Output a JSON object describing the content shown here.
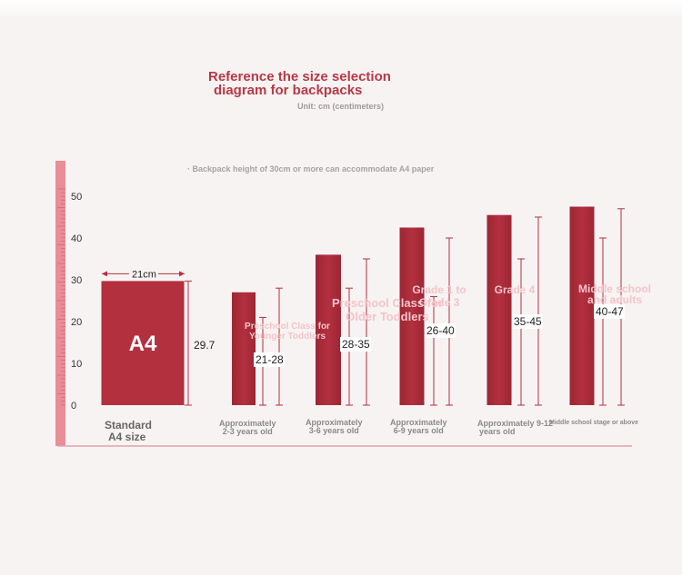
{
  "title_line1": "Reference the size selection",
  "title_line2": "diagram for backpacks",
  "unit_label": "Unit: cm (centimeters)",
  "note": "· Backpack height of 30cm or more can accommodate A4 paper",
  "colors": {
    "bar": "#b3303f",
    "bar_dark": "#9d2634",
    "ruler": "#e98d97",
    "title": "#b83846"
  },
  "chart_data": {
    "type": "bar",
    "title": "Reference the size selection diagram for backpacks",
    "unit": "cm",
    "ylim": [
      0,
      50
    ],
    "yticks": [
      0,
      10,
      20,
      30,
      40,
      50
    ],
    "grid": false,
    "categories": [
      "Standard A4 size",
      "Approximately 2-3 years old",
      "Approximately 3-6 years old",
      "Approximately 6-9 years old",
      "Approximately 9-12 years old",
      "Middle school stage or above"
    ],
    "bar_labels": [
      "A4",
      "Preschool Class for Younger Toddlers",
      "Preschool Class for Older Toddlers",
      "Grade 1 to Grade 3",
      "Grade 4",
      "Middle school and adults"
    ],
    "range_labels": [
      "29.7",
      "21-28",
      "28-35",
      "26-40",
      "35-45",
      "40-47"
    ],
    "range_min": [
      29.7,
      21,
      28,
      26,
      35,
      40
    ],
    "range_max": [
      29.7,
      28,
      35,
      40,
      45,
      47
    ],
    "values": [
      29.7,
      27,
      36,
      42.5,
      45.5,
      47.5
    ],
    "a4_width_label": "21cm"
  }
}
